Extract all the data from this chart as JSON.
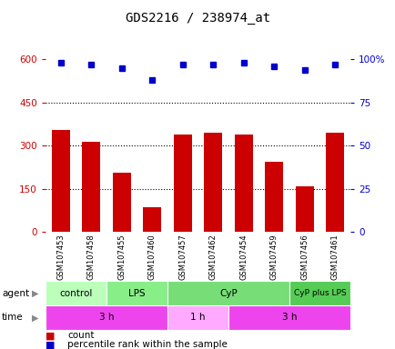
{
  "title": "GDS2216 / 238974_at",
  "samples": [
    "GSM107453",
    "GSM107458",
    "GSM107455",
    "GSM107460",
    "GSM107457",
    "GSM107462",
    "GSM107454",
    "GSM107459",
    "GSM107456",
    "GSM107461"
  ],
  "counts": [
    355,
    315,
    205,
    85,
    340,
    345,
    340,
    245,
    160,
    345
  ],
  "percentile_ranks": [
    98,
    97,
    95,
    88,
    97,
    97,
    98,
    96,
    94,
    97
  ],
  "left_ylim": [
    0,
    600
  ],
  "right_ylim": [
    0,
    100
  ],
  "left_yticks": [
    0,
    150,
    300,
    450,
    600
  ],
  "right_yticks": [
    0,
    25,
    50,
    75,
    100
  ],
  "right_yticklabels": [
    "0",
    "25",
    "50",
    "75",
    "100%"
  ],
  "bar_color": "#cc0000",
  "dot_color": "#0000cc",
  "agent_groups": [
    {
      "label": "control",
      "start": 0,
      "end": 2,
      "color": "#bbffbb"
    },
    {
      "label": "LPS",
      "start": 2,
      "end": 4,
      "color": "#88ee88"
    },
    {
      "label": "CyP",
      "start": 4,
      "end": 8,
      "color": "#77dd77"
    },
    {
      "label": "CyP plus LPS",
      "start": 8,
      "end": 10,
      "color": "#55cc55"
    }
  ],
  "time_groups": [
    {
      "label": "3 h",
      "start": 0,
      "end": 4,
      "color": "#ee44ee"
    },
    {
      "label": "1 h",
      "start": 4,
      "end": 6,
      "color": "#ffaaff"
    },
    {
      "label": "3 h",
      "start": 6,
      "end": 10,
      "color": "#ee44ee"
    }
  ],
  "agent_label": "agent",
  "time_label": "time",
  "legend_count_label": "count",
  "legend_pct_label": "percentile rank within the sample",
  "background_color": "#ffffff",
  "sample_bg_color": "#cccccc"
}
